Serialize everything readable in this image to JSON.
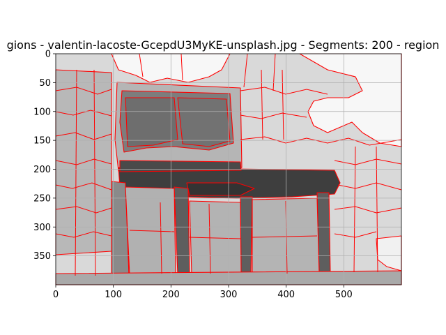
{
  "figure": {
    "title": "gions - valentin-lacoste-GcepdU3MyKE-unsplash.jpg - Segments: 200 - region"
  },
  "axes": {
    "xlim": [
      0,
      600
    ],
    "ylim": [
      400,
      0
    ],
    "x_ticks": [
      0,
      100,
      200,
      300,
      400,
      500
    ],
    "y_ticks": [
      0,
      50,
      100,
      150,
      200,
      250,
      300,
      350
    ],
    "grid": true,
    "y_inverted": true
  },
  "image": {
    "segment_count": 200,
    "boundary_color": "#ff0000",
    "shades": {
      "background": "#d9d9d9",
      "bright_region": "#f6f6f6",
      "mid_region": "#b3b3b3",
      "dark_region": "#7a7a7a",
      "darkest_region": "#3a3a3a"
    }
  }
}
